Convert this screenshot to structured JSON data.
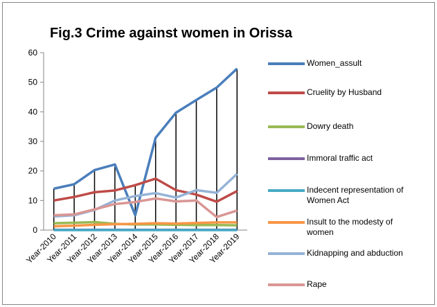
{
  "chart_data": {
    "type": "line",
    "title": "Fig.3 Crime against women in Orissa",
    "categories": [
      "Year-2010",
      "Year-2011",
      "Year-2012",
      "Year-2013",
      "Year-2014",
      "Year-2015",
      "Year-2016",
      "Year-2017",
      "Year-2018",
      "Year-2019"
    ],
    "series": [
      {
        "name": "Women_assult",
        "color": "#4a7ebb",
        "values": [
          14,
          15.5,
          20.3,
          22.2,
          5,
          31.2,
          39.7,
          44,
          48.2,
          54.6
        ]
      },
      {
        "name": "Cruelity by Husband",
        "color": "#be4b48",
        "values": [
          10,
          11.2,
          12.8,
          13.4,
          15.2,
          17.4,
          13.5,
          12,
          9.6,
          13.2
        ]
      },
      {
        "name": "Dowry death",
        "color": "#98b954",
        "values": [
          2.3,
          2.5,
          2.7,
          2.1,
          1.9,
          1.9,
          1.8,
          1.7,
          1.7,
          1.6
        ]
      },
      {
        "name": "Immoral traffic act",
        "color": "#7d60a0",
        "values": [
          0.1,
          0.1,
          0.1,
          0.1,
          0.1,
          0.1,
          0.1,
          0.1,
          0.1,
          0.1
        ]
      },
      {
        "name": "Indecent representation of Women Act",
        "color": "#46aac5",
        "values": [
          0,
          0,
          0,
          0,
          0,
          0,
          0,
          0,
          0,
          0
        ]
      },
      {
        "name": "Insult to the modesty of women",
        "color": "#f79646",
        "values": [
          1.3,
          1.5,
          1.8,
          2,
          2.1,
          2.3,
          2.2,
          2.4,
          2.6,
          2.6
        ]
      },
      {
        "name": "Kidnapping and abduction",
        "color": "#95b3d7",
        "values": [
          4.6,
          5,
          6.8,
          10,
          11.5,
          12.5,
          11,
          13.5,
          12.6,
          19
        ]
      },
      {
        "name": "Rape",
        "color": "#d99694",
        "values": [
          5,
          5.3,
          7,
          8.8,
          9.5,
          10.7,
          9.7,
          10,
          4.4,
          6.6
        ]
      }
    ],
    "ylim": [
      0,
      60
    ],
    "yticks": [
      0,
      10,
      20,
      30,
      40,
      50,
      60
    ],
    "drop_lines": true,
    "legend": "right"
  }
}
